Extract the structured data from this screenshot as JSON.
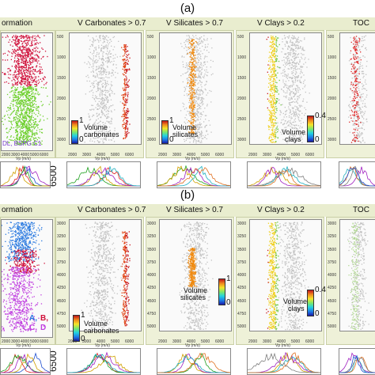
{
  "labels": {
    "a": "(a)",
    "b": "(b)",
    "depth_a": "6500",
    "depth_b": "6500"
  },
  "rows": [
    {
      "titles": [
        "ormation",
        "V Carbonates > 0.7",
        "V Silicates > 0.7",
        "V Clays > 0.2",
        "TOC"
      ],
      "depth_ticks": [
        "500",
        "1000",
        "1500",
        "2000",
        "2500",
        "3000"
      ],
      "vp_ticks": [
        "2000",
        "3000",
        "4000",
        "5000",
        "6000"
      ],
      "vp_label": "Vp (m/s)",
      "formation_text": "DL, BSPG C1",
      "cbars": [
        {
          "max": "1",
          "min": "0",
          "label1": "Volume",
          "label2": "carbonates"
        },
        {
          "max": "1",
          "min": "0",
          "label1": "Volume",
          "label2": "silicates"
        },
        {
          "max": "0.4",
          "min": "0",
          "label1": "Volume",
          "label2": "clays"
        }
      ],
      "hist_ylabel": "No. of Points"
    },
    {
      "titles": [
        "ormation",
        "V Carbonates > 0.7",
        "V Silicates > 0.7",
        "V Clays > 0.2",
        "TOC"
      ],
      "depth_ticks": [
        "3000",
        "3250",
        "3500",
        "3750",
        "4000",
        "4250",
        "4500",
        "4750",
        "5000"
      ],
      "vp_ticks": [
        "2000",
        "3000",
        "4000",
        "5000",
        "6000"
      ],
      "vp_label": "Vp (m/s)",
      "formation_letters": [
        "A,",
        "B,",
        "C,",
        "D"
      ],
      "cbars": [
        {
          "max": "1",
          "min": "0",
          "label1": "Volume",
          "label2": "carbonates"
        },
        {
          "max": "1",
          "min": "0",
          "label1": "Volume",
          "label2": "silicates"
        },
        {
          "max": "0.4",
          "min": "0",
          "label1": "Volume",
          "label2": "clays"
        }
      ],
      "hist_ylabel": "No. of Points"
    }
  ],
  "colors": {
    "grey": "#c2c2c2",
    "carb": "#e0400f",
    "sil": "#f08a10",
    "clay_hi": "#c81818",
    "clay_mid": "#f0d020",
    "clay_lo": "#70c840",
    "toc": "#b0d890",
    "form_red": "#d0103a",
    "form_green": "#6ccf2a",
    "form_blue": "#2a7ae0",
    "form_purple": "#c040e0",
    "hist": [
      "#1f4fd0",
      "#e02020",
      "#20a020",
      "#d0a000",
      "#a020c0",
      "#20b0c0",
      "#e07020",
      "#808080"
    ]
  },
  "chart_data": [
    {
      "type": "scatter",
      "title": "(a)",
      "panels": [
        "ormation",
        "V Carbonates > 0.7",
        "V Silicates > 0.7",
        "V Clays > 0.2",
        "TOC"
      ],
      "xlabel": "Vp (m/s)",
      "xlim": [
        2000,
        6500
      ],
      "ylim": [
        3200,
        0
      ],
      "colorbars": [
        {
          "label": "Volume carbonates",
          "range": [
            0,
            1
          ]
        },
        {
          "label": "Volume silicates",
          "range": [
            0,
            1
          ]
        },
        {
          "label": "Volume clays",
          "range": [
            0,
            0.4
          ]
        }
      ]
    },
    {
      "type": "scatter",
      "title": "(b)",
      "panels": [
        "ormation",
        "V Carbonates > 0.7",
        "V Silicates > 0.7",
        "V Clays > 0.2",
        "TOC"
      ],
      "xlabel": "Vp (m/s)",
      "xlim": [
        2000,
        6500
      ],
      "ylim": [
        5000,
        3000
      ],
      "colorbars": [
        {
          "label": "Volume carbonates",
          "range": [
            0,
            1
          ]
        },
        {
          "label": "Volume silicates",
          "range": [
            0,
            1
          ]
        },
        {
          "label": "Volume clays",
          "range": [
            0,
            0.4
          ]
        }
      ]
    }
  ]
}
